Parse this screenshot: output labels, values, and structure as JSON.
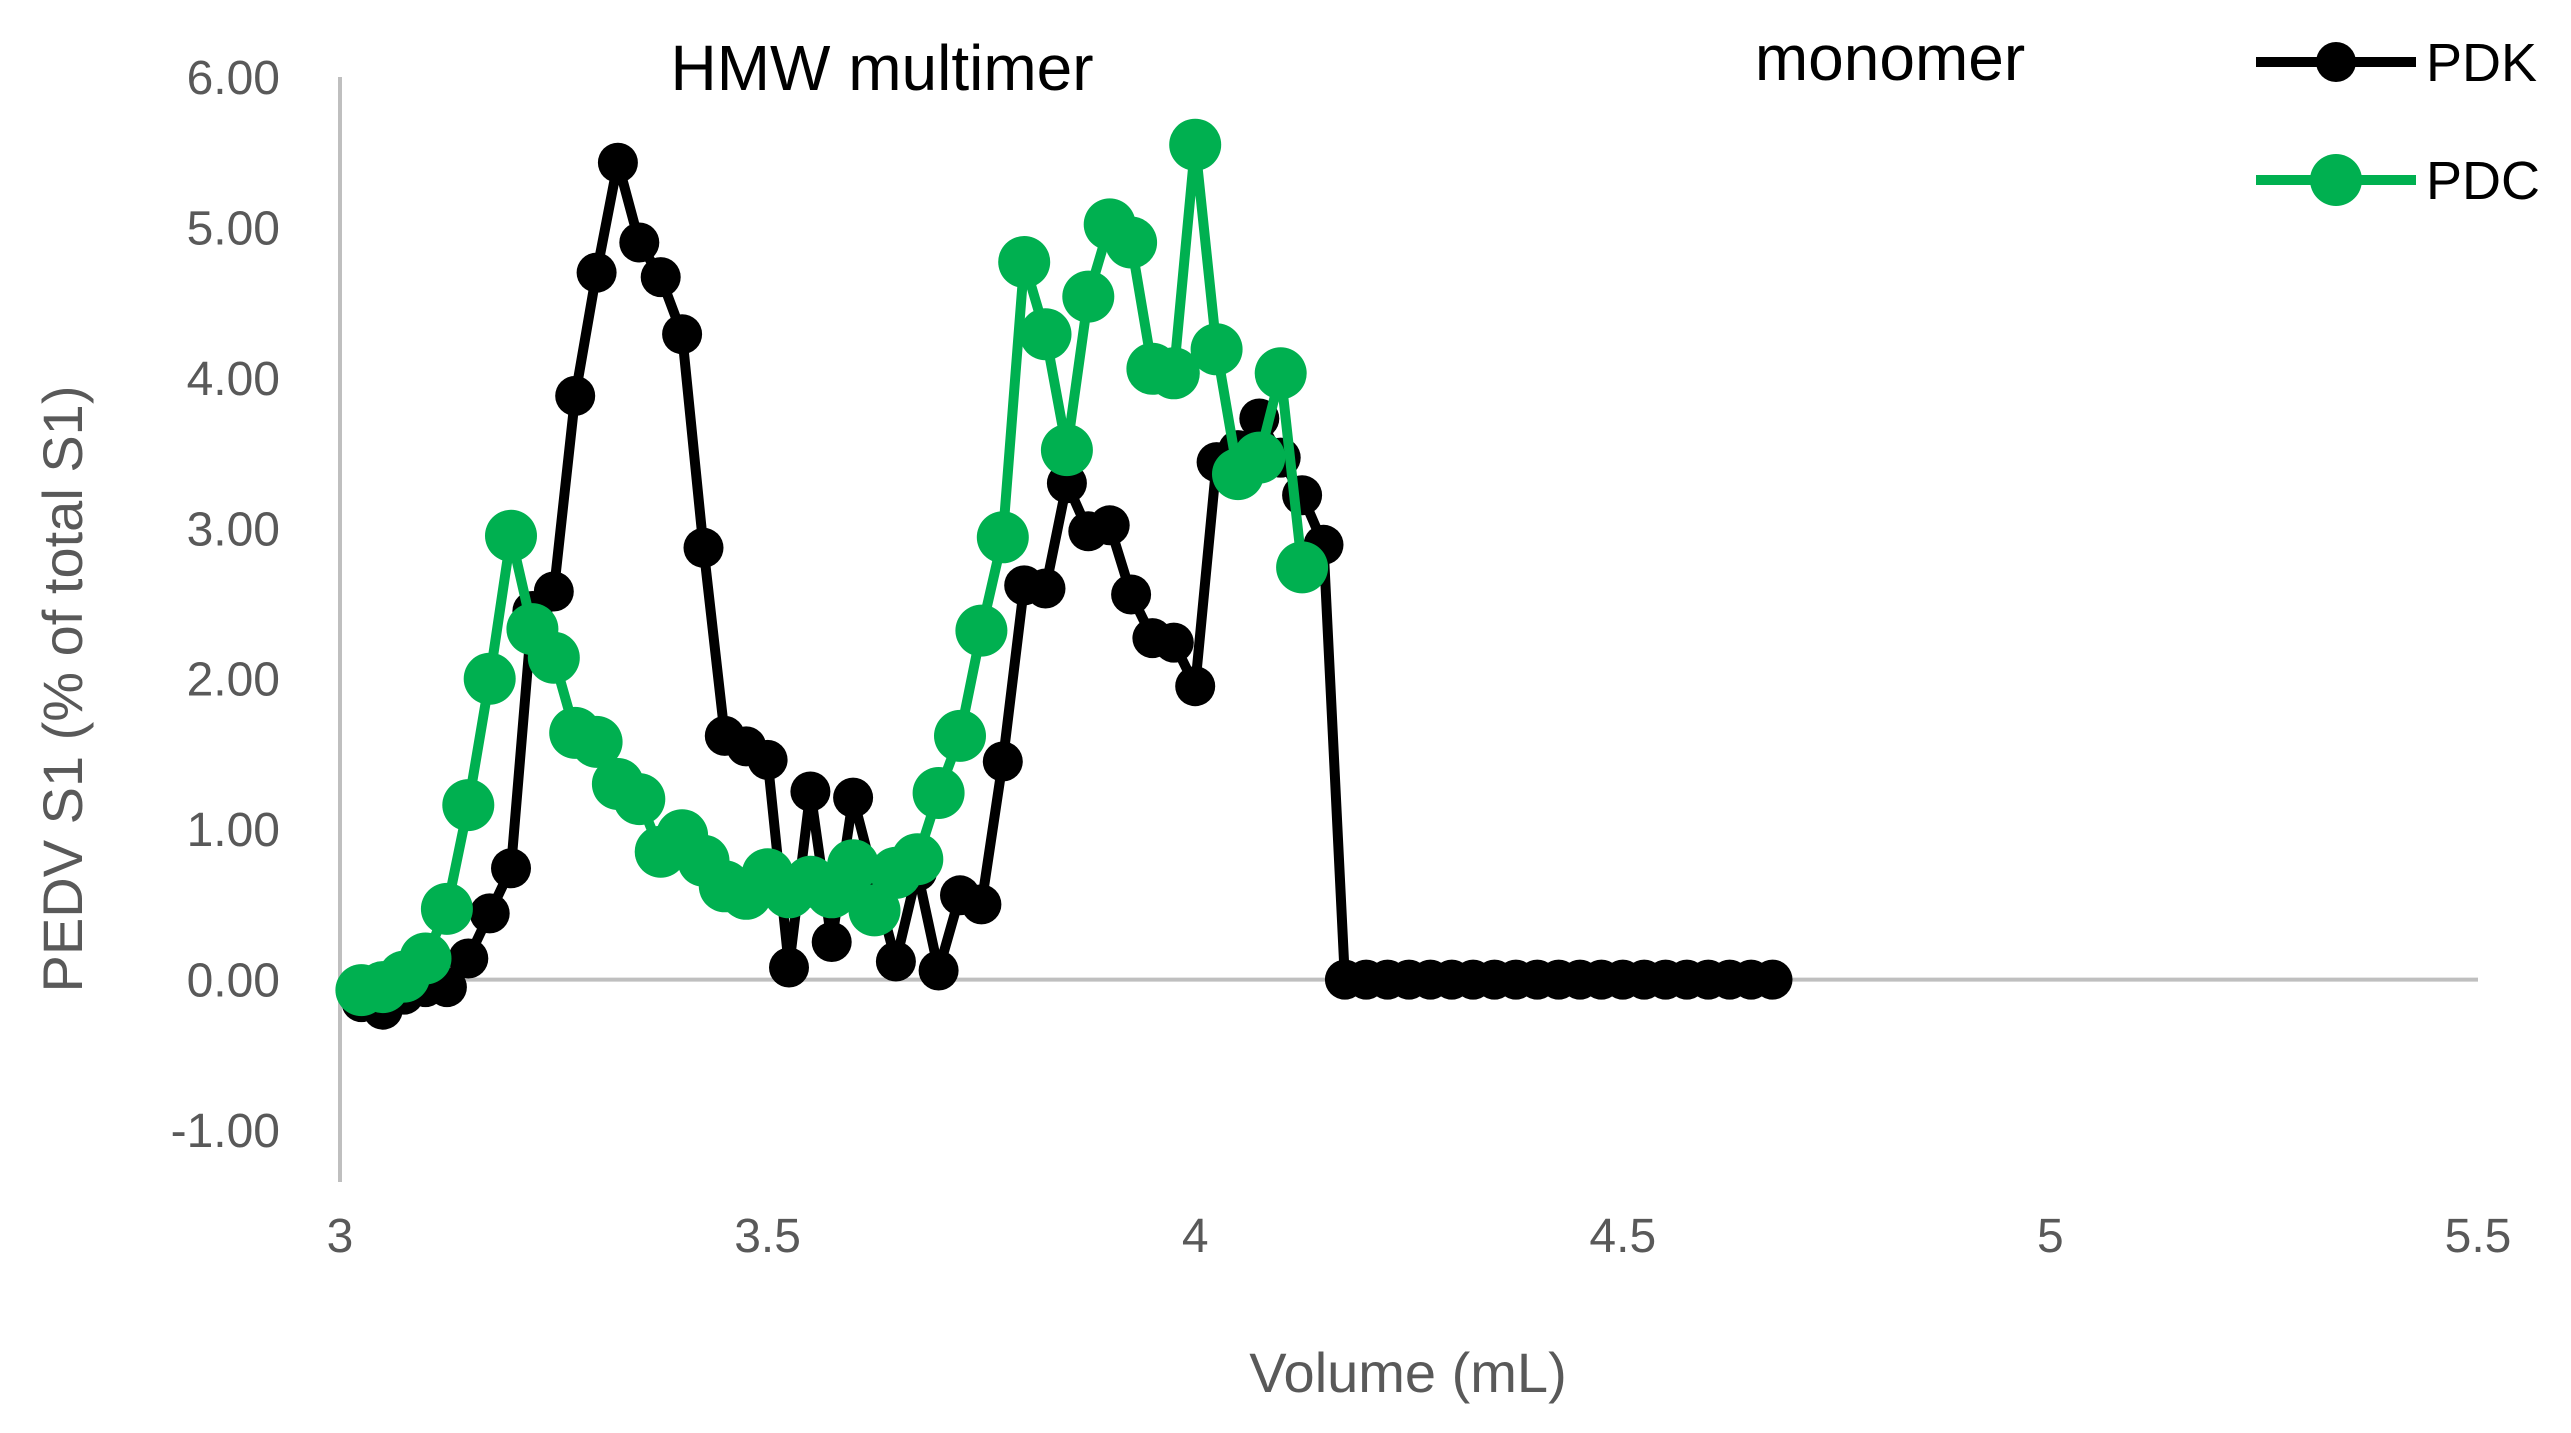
{
  "chart_data": {
    "type": "line",
    "xlabel": "Volume (mL)",
    "ylabel": "PEDV S1 (% of total S1)",
    "xlim": [
      3,
      5.5
    ],
    "ylim": [
      -1,
      6
    ],
    "x_ticks": [
      "3",
      "3.5",
      "4",
      "4.5",
      "5",
      "5.5"
    ],
    "y_ticks": [
      "-1.00",
      "0.00",
      "1.00",
      "2.00",
      "3.00",
      "4.00",
      "5.00",
      "6.00"
    ],
    "annotations": [
      {
        "text": "HMW multimer",
        "x": 3.8
      },
      {
        "text": "monomer",
        "x": 4.87
      }
    ],
    "legend_position": "top-right",
    "grid": false,
    "series": [
      {
        "name": "PDK",
        "color": "#000000",
        "x": [
          3.025,
          3.05,
          3.075,
          3.1,
          3.125,
          3.15,
          3.175,
          3.2,
          3.225,
          3.25,
          3.275,
          3.3,
          3.325,
          3.35,
          3.375,
          3.4,
          3.425,
          3.45,
          3.475,
          3.5,
          3.525,
          3.55,
          3.575,
          3.6,
          3.625,
          3.65,
          3.675,
          3.7,
          3.725,
          3.75,
          3.775,
          3.8,
          3.825,
          3.85,
          3.875,
          3.9,
          3.925,
          3.95,
          3.975,
          4.0,
          4.025,
          4.05,
          4.075,
          4.1,
          4.125,
          4.15,
          4.175,
          4.2,
          4.225,
          4.25,
          4.275,
          4.3,
          4.325,
          4.35,
          4.375,
          4.4,
          4.425,
          4.45,
          4.475,
          4.5,
          4.525,
          4.55,
          4.575,
          4.6,
          4.625,
          4.65,
          4.675
        ],
        "values": [
          -0.15,
          -0.2,
          -0.1,
          -0.05,
          -0.05,
          0.14,
          0.44,
          0.74,
          2.45,
          2.58,
          3.88,
          4.7,
          5.43,
          4.9,
          4.67,
          4.29,
          2.87,
          1.62,
          1.55,
          1.46,
          0.08,
          1.25,
          0.25,
          1.21,
          0.66,
          0.12,
          0.72,
          0.06,
          0.56,
          0.5,
          1.45,
          2.62,
          2.6,
          3.3,
          2.98,
          3.02,
          2.56,
          2.27,
          2.24,
          1.95,
          3.44,
          3.52,
          3.73,
          3.47,
          3.22,
          2.89,
          0,
          0,
          0,
          0,
          0,
          0,
          0,
          0,
          0,
          0,
          0,
          0,
          0,
          0,
          0,
          0,
          0,
          0,
          0,
          0,
          0
        ]
      },
      {
        "name": "PDC",
        "color": "#00B050",
        "x": [
          3.025,
          3.05,
          3.075,
          3.1,
          3.125,
          3.15,
          3.175,
          3.2,
          3.225,
          3.25,
          3.275,
          3.3,
          3.325,
          3.35,
          3.375,
          3.4,
          3.425,
          3.45,
          3.475,
          3.5,
          3.525,
          3.55,
          3.575,
          3.6,
          3.625,
          3.65,
          3.675,
          3.7,
          3.725,
          3.75,
          3.775,
          3.8,
          3.825,
          3.85,
          3.875,
          3.9,
          3.925,
          3.95,
          3.975,
          4.0,
          4.025,
          4.05,
          4.075,
          4.1,
          4.125
        ],
        "values": [
          -0.07,
          -0.05,
          0.02,
          0.14,
          0.47,
          1.16,
          2.0,
          2.95,
          2.33,
          2.14,
          1.64,
          1.58,
          1.3,
          1.2,
          0.85,
          0.96,
          0.79,
          0.62,
          0.57,
          0.7,
          0.58,
          0.65,
          0.58,
          0.76,
          0.46,
          0.71,
          0.8,
          1.24,
          1.62,
          2.32,
          2.94,
          4.77,
          4.29,
          3.52,
          4.54,
          5.02,
          4.9,
          4.06,
          4.03,
          5.55,
          4.19,
          3.36,
          3.47,
          4.03,
          2.74
        ]
      }
    ]
  }
}
